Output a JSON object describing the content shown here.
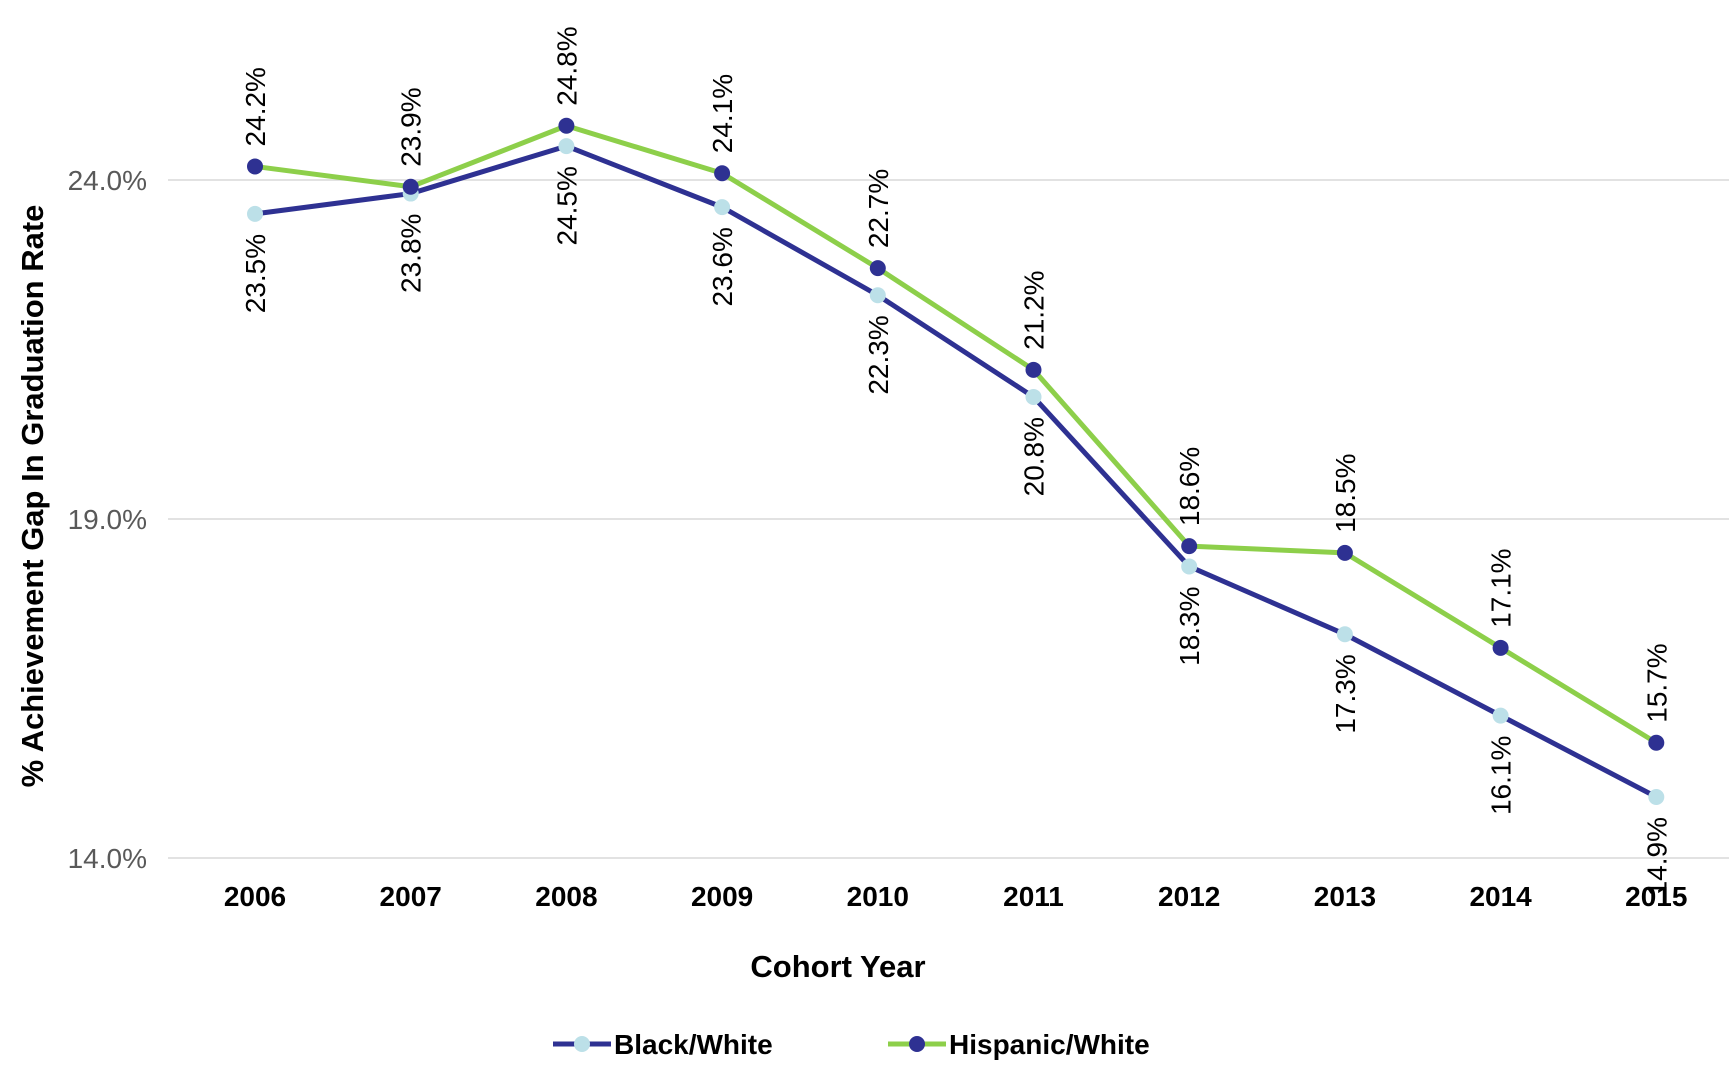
{
  "chart_data": {
    "type": "line",
    "xlabel": "Cohort Year",
    "ylabel": "% Achievement Gap In Graduation Rate",
    "categories": [
      "2006",
      "2007",
      "2008",
      "2009",
      "2010",
      "2011",
      "2012",
      "2013",
      "2014",
      "2015"
    ],
    "ylim": [
      14.0,
      24.0
    ],
    "yticks": [
      "14.0%",
      "19.0%",
      "24.0%"
    ],
    "ytick_values": [
      14.0,
      19.0,
      24.0
    ],
    "grid": true,
    "legend_position": "bottom",
    "series": [
      {
        "name": "Black/White",
        "line_color": "#2E3192",
        "marker_color": "#BCE0E8",
        "values": [
          23.5,
          23.8,
          24.5,
          23.6,
          22.3,
          20.8,
          18.3,
          17.3,
          16.1,
          14.9
        ],
        "labels": [
          "23.5%",
          "23.8%",
          "24.5%",
          "23.6%",
          "22.3%",
          "20.8%",
          "18.3%",
          "17.3%",
          "16.1%",
          "14.9%"
        ]
      },
      {
        "name": "Hispanic/White",
        "line_color": "#8DCF4A",
        "marker_color": "#2E3192",
        "values": [
          24.2,
          23.9,
          24.8,
          24.1,
          22.7,
          21.2,
          18.6,
          18.5,
          17.1,
          15.7
        ],
        "labels": [
          "24.2%",
          "23.9%",
          "24.8%",
          "24.1%",
          "22.7%",
          "21.2%",
          "18.6%",
          "18.5%",
          "17.1%",
          "15.7%"
        ]
      }
    ]
  }
}
